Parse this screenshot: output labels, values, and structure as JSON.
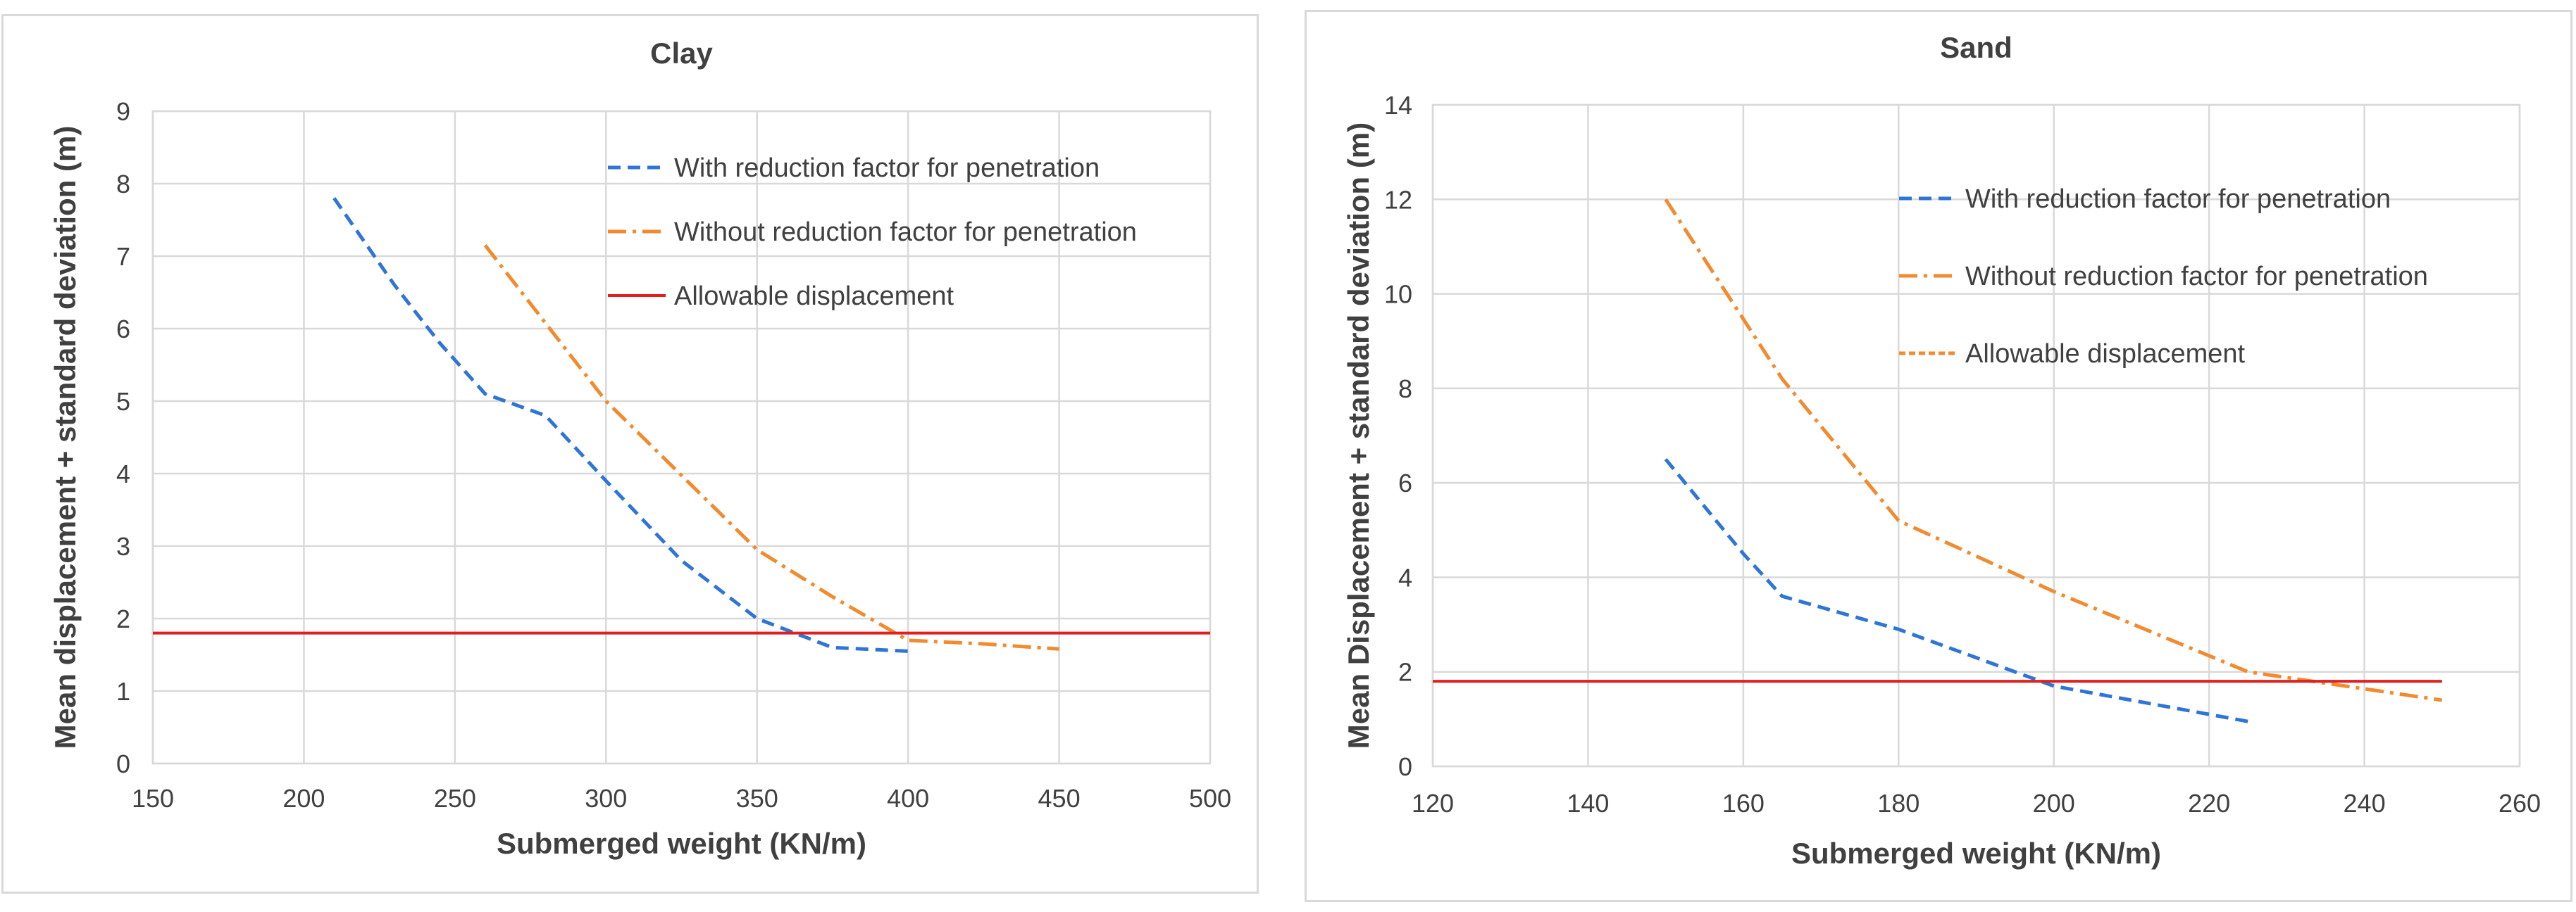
{
  "colors": {
    "blue": "#2e75d6",
    "orange": "#f28a2e",
    "red": "#e41e1e",
    "grid": "#d9d9d9",
    "text": "#404040"
  },
  "chart_data": [
    {
      "type": "line",
      "title": "Clay",
      "xlabel": "Submerged weight (KN/m)",
      "ylabel": "Mean displacement + standard deviation (m)",
      "xlim": [
        150,
        500
      ],
      "ylim": [
        0,
        9
      ],
      "xticks": [
        "150",
        "200",
        "250",
        "300",
        "350",
        "400",
        "450",
        "500"
      ],
      "yticks": [
        "0",
        "1",
        "2",
        "3",
        "4",
        "5",
        "6",
        "7",
        "8",
        "9"
      ],
      "grid": true,
      "legend_position": "top-right",
      "series": [
        {
          "name": "With reduction factor for penetration",
          "style": "dashed",
          "color": "#2e75d6",
          "x": [
            210,
            230,
            245,
            260,
            280,
            300,
            325,
            350,
            375,
            400
          ],
          "y": [
            7.8,
            6.6,
            5.8,
            5.1,
            4.8,
            3.9,
            2.8,
            2.0,
            1.6,
            1.55
          ]
        },
        {
          "name": "Without reduction factor for penetration",
          "style": "dashdot",
          "color": "#f28a2e",
          "x": [
            260,
            300,
            350,
            375,
            400,
            425,
            450
          ],
          "y": [
            7.15,
            5.0,
            2.95,
            2.3,
            1.7,
            1.65,
            1.58
          ]
        },
        {
          "name": "Allowable displacement",
          "style": "solid",
          "color": "#e41e1e",
          "x": [
            150,
            500
          ],
          "y": [
            1.8,
            1.8
          ]
        }
      ]
    },
    {
      "type": "line",
      "title": "Sand",
      "xlabel": "Submerged weight (KN/m)",
      "ylabel": "Mean Displacement + standard deviation (m)",
      "xlim": [
        120,
        260
      ],
      "ylim": [
        0,
        14
      ],
      "xticks": [
        "120",
        "140",
        "160",
        "180",
        "200",
        "220",
        "240",
        "260"
      ],
      "yticks": [
        "0",
        "2",
        "4",
        "6",
        "8",
        "10",
        "12",
        "14"
      ],
      "grid": true,
      "legend_position": "top-right",
      "series": [
        {
          "name": "With reduction factor for penetration",
          "style": "dashed",
          "color": "#2e75d6",
          "x": [
            150,
            160,
            165,
            180,
            200,
            225
          ],
          "y": [
            6.5,
            4.5,
            3.6,
            2.9,
            1.7,
            0.95
          ]
        },
        {
          "name": "Without reduction factor for penetration",
          "style": "dashdot",
          "color": "#f28a2e",
          "x": [
            150,
            165,
            180,
            200,
            225,
            250
          ],
          "y": [
            12.0,
            8.2,
            5.2,
            3.7,
            2.0,
            1.4
          ]
        },
        {
          "name": "Allowable displacement",
          "style": "solid",
          "color": "#e41e1e",
          "legend_style": "shortdash",
          "legend_color": "#f28a2e",
          "x": [
            120,
            250
          ],
          "y": [
            1.8,
            1.8
          ]
        }
      ]
    }
  ]
}
